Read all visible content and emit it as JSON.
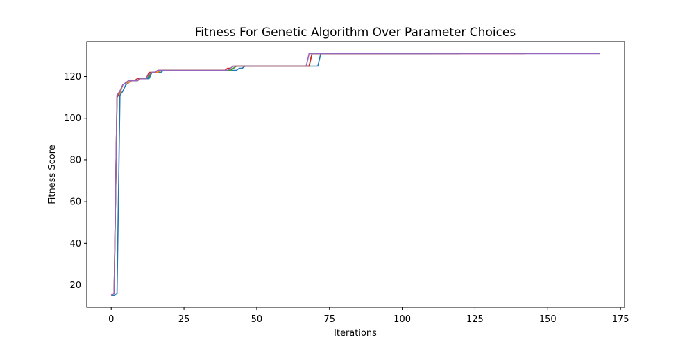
{
  "chart_data": {
    "type": "line",
    "title": "Fitness For Genetic Algorithm Over Parameter Choices",
    "xlabel": "Iterations",
    "ylabel": "Fitness Score",
    "xlim": [
      -8.4,
      176.4
    ],
    "ylim": [
      9.2,
      136.8
    ],
    "xticks": [
      0,
      25,
      50,
      75,
      100,
      125,
      150,
      175
    ],
    "yticks": [
      20,
      40,
      60,
      80,
      100,
      120
    ],
    "grid": false,
    "legend": "none",
    "series": [
      {
        "color": "#1f77b4",
        "x": [
          0,
          1,
          2,
          3,
          4,
          5,
          6,
          7,
          8,
          9,
          10,
          11,
          12,
          13,
          14,
          15,
          16,
          17,
          18,
          40,
          41,
          42,
          43,
          44,
          45,
          46,
          71,
          72,
          110
        ],
        "y": [
          15,
          15,
          16,
          111,
          113,
          116,
          117,
          118,
          118,
          118,
          119,
          119,
          119,
          119,
          122,
          122,
          122,
          122,
          123,
          123,
          123,
          123,
          123,
          124,
          124,
          125,
          125,
          131,
          131
        ]
      },
      {
        "color": "#ff7f0e",
        "x": [
          0,
          1,
          2,
          3,
          4,
          5,
          6,
          7,
          8,
          9,
          10,
          11,
          12,
          13,
          14,
          15,
          16,
          17,
          40,
          41,
          42,
          43,
          68,
          69,
          95
        ],
        "y": [
          15,
          16,
          110,
          112,
          116,
          117,
          117,
          118,
          118,
          118,
          119,
          119,
          119,
          121,
          122,
          122,
          122,
          123,
          123,
          123,
          124,
          125,
          125,
          131,
          131
        ]
      },
      {
        "color": "#2ca02c",
        "x": [
          0,
          1,
          2,
          3,
          4,
          5,
          6,
          7,
          8,
          9,
          10,
          11,
          12,
          13,
          14,
          15,
          16,
          17,
          40,
          41,
          42,
          43,
          68,
          69,
          120
        ],
        "y": [
          15,
          16,
          111,
          113,
          116,
          117,
          118,
          118,
          118,
          118,
          119,
          119,
          119,
          120,
          122,
          122,
          123,
          123,
          123,
          123,
          124,
          125,
          125,
          131,
          131
        ]
      },
      {
        "color": "#d62728",
        "x": [
          0,
          1,
          2,
          3,
          4,
          5,
          6,
          7,
          8,
          9,
          10,
          11,
          12,
          13,
          14,
          15,
          16,
          17,
          39,
          40,
          41,
          42,
          68,
          69,
          142
        ],
        "y": [
          15,
          16,
          110,
          113,
          116,
          117,
          118,
          118,
          118,
          119,
          119,
          119,
          119,
          122,
          122,
          122,
          123,
          123,
          123,
          124,
          124,
          125,
          125,
          131,
          131
        ]
      },
      {
        "color": "#9467bd",
        "x": [
          0,
          1,
          2,
          3,
          4,
          5,
          6,
          7,
          8,
          9,
          10,
          11,
          12,
          13,
          14,
          15,
          16,
          17,
          40,
          41,
          42,
          67,
          68,
          168
        ],
        "y": [
          15,
          16,
          111,
          113,
          116,
          117,
          118,
          118,
          118,
          118,
          119,
          119,
          119,
          121,
          122,
          122,
          123,
          123,
          123,
          124,
          125,
          125,
          131,
          131
        ]
      }
    ]
  }
}
